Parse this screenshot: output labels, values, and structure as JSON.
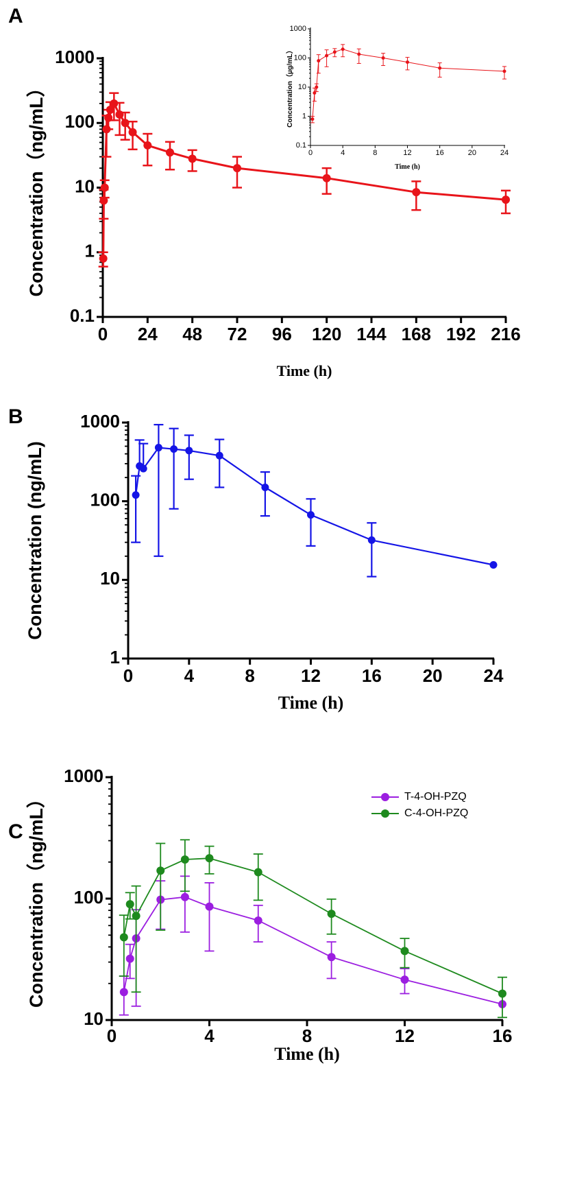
{
  "figure": {
    "panel_labels": [
      "A",
      "B",
      "C"
    ]
  },
  "chart_data": [
    {
      "id": "A",
      "type": "line",
      "yscale": "log",
      "xlabel": "Time (h)",
      "ylabel": "Concentration（ng/mL）",
      "xlim": [
        0,
        216
      ],
      "ylim": [
        0.1,
        1000
      ],
      "xticks": [
        "0",
        "24",
        "48",
        "72",
        "96",
        "120",
        "144",
        "168",
        "192",
        "216"
      ],
      "yticks": [
        "0.1",
        "1",
        "10",
        "100",
        "1000"
      ],
      "color": "#e8141a",
      "series": [
        {
          "name": "Concentration",
          "x": [
            0.25,
            0.5,
            1,
            2,
            3,
            4,
            6,
            9,
            12,
            16,
            24,
            36,
            48,
            72,
            120,
            168,
            216
          ],
          "y": [
            0.8,
            6.3,
            10,
            80,
            120,
            160,
            200,
            135,
            100,
            72,
            45,
            35,
            28,
            20,
            14,
            8.5,
            6.5
          ],
          "err": [
            0.2,
            3,
            3,
            50,
            40,
            50,
            90,
            70,
            45,
            33,
            23,
            16,
            10,
            10,
            6,
            4,
            2.5
          ]
        }
      ]
    },
    {
      "id": "A-inset",
      "type": "line",
      "yscale": "log",
      "xlabel": "Time (h)",
      "ylabel": "Concentration（μg/mL）",
      "xlim": [
        0,
        24
      ],
      "ylim": [
        0.1,
        1000
      ],
      "xticks": [
        "0",
        "4",
        "8",
        "12",
        "16",
        "20",
        "24"
      ],
      "yticks": [
        "0.1",
        "1",
        "10",
        "100",
        "1000"
      ],
      "color": "#e8141a",
      "series": [
        {
          "name": "Concentration",
          "x": [
            0.25,
            0.5,
            0.75,
            1,
            2,
            3,
            4,
            6,
            9,
            12,
            16,
            24
          ],
          "y": [
            0.8,
            6.3,
            10,
            80,
            120,
            160,
            200,
            135,
            100,
            72,
            45,
            35
          ],
          "err": [
            0.2,
            3,
            3,
            50,
            70,
            50,
            90,
            70,
            45,
            33,
            23,
            16
          ]
        }
      ]
    },
    {
      "id": "B",
      "type": "line",
      "yscale": "log",
      "xlabel": "Time (h)",
      "ylabel": "Concentration (ng/mL)",
      "xlim": [
        0,
        24
      ],
      "ylim": [
        1,
        1000
      ],
      "xticks": [
        "0",
        "4",
        "8",
        "12",
        "16",
        "20",
        "24"
      ],
      "yticks": [
        "1",
        "10",
        "100",
        "1000"
      ],
      "color": "#1515e6",
      "series": [
        {
          "name": "Concentration",
          "x": [
            0.5,
            0.75,
            1,
            2,
            3,
            4,
            6,
            9,
            12,
            16,
            24
          ],
          "y": [
            120,
            280,
            260,
            480,
            460,
            440,
            380,
            150,
            67,
            32,
            15.5
          ],
          "err": [
            90,
            320,
            280,
            460,
            380,
            250,
            230,
            85,
            40,
            21,
            0
          ]
        }
      ]
    },
    {
      "id": "C",
      "type": "line",
      "yscale": "log",
      "xlabel": "Time (h)",
      "ylabel": "Concentration（ng/mL）",
      "xlim": [
        0,
        16
      ],
      "ylim": [
        10,
        1000
      ],
      "xticks": [
        "0",
        "4",
        "8",
        "12",
        "16"
      ],
      "yticks": [
        "10",
        "100",
        "1000"
      ],
      "legend_position": "top-right",
      "series": [
        {
          "name": "T-4-OH-PZQ",
          "color": "#9b1ee0",
          "x": [
            0.5,
            0.75,
            1,
            2,
            3,
            4,
            6,
            9,
            12,
            16
          ],
          "y": [
            17,
            32,
            47,
            98,
            103,
            86,
            66,
            33,
            21.5,
            13.5
          ],
          "err": [
            6,
            10,
            34,
            42,
            50,
            49,
            22,
            11,
            5,
            0
          ]
        },
        {
          "name": "C-4-OH-PZQ",
          "color": "#1e8a1e",
          "x": [
            0.5,
            0.75,
            1,
            2,
            3,
            4,
            6,
            9,
            12,
            16
          ],
          "y": [
            48,
            90,
            72,
            170,
            210,
            215,
            165,
            75,
            37,
            16.5
          ],
          "err": [
            25,
            22,
            55,
            115,
            95,
            55,
            68,
            24,
            10,
            6
          ]
        }
      ]
    }
  ]
}
